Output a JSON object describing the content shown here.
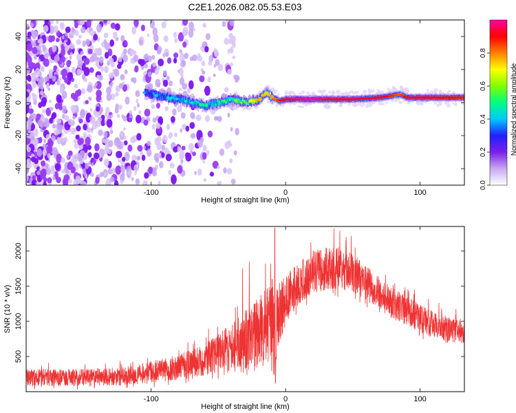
{
  "title": "C2E1.2026.082.05.53.E03",
  "chart_data": [
    {
      "type": "heatmap",
      "name": "spectrogram",
      "xlabel": "Height of straight line (km)",
      "ylabel": "Frequency (Hz)",
      "xlim": [
        -193,
        133
      ],
      "ylim": [
        -50,
        50
      ],
      "xticks": [
        -100,
        0,
        100
      ],
      "yticks": [
        -40,
        -20,
        0,
        20,
        40
      ],
      "ridge": {
        "x": [
          -105,
          -95,
          -80,
          -70,
          -60,
          -50,
          -40,
          -30,
          -20,
          -15,
          -10,
          -5,
          0,
          10,
          20,
          30,
          50,
          70,
          85,
          90,
          100,
          133
        ],
        "freq": [
          6,
          4,
          2,
          0,
          -2,
          0,
          2,
          0,
          2,
          6,
          3,
          1,
          2,
          2,
          2,
          2,
          2,
          3,
          5,
          3,
          3,
          3
        ],
        "amplitude": [
          0.3,
          0.35,
          0.35,
          0.4,
          0.45,
          0.45,
          0.5,
          0.55,
          0.7,
          0.65,
          0.7,
          0.8,
          0.85,
          0.9,
          0.95,
          0.85,
          0.85,
          0.85,
          0.75,
          0.85,
          0.85,
          0.8
        ]
      },
      "noise_region_x": [
        -193,
        -35
      ],
      "colorbar": {
        "label": "Normalized spectral amplitude",
        "range": [
          0,
          1
        ],
        "ticks": [
          "0.0",
          "0.2",
          "0.4",
          "0.6",
          "0.8"
        ],
        "tick_values": [
          0,
          0.2,
          0.4,
          0.6,
          0.8
        ],
        "colormap": [
          "#ffffff",
          "#c8a8f0",
          "#7a20e8",
          "#2020ff",
          "#00c8ff",
          "#00ff80",
          "#80ff00",
          "#ffff00",
          "#ff8000",
          "#ff0000",
          "#ff00a0"
        ]
      }
    },
    {
      "type": "line",
      "name": "snr",
      "xlabel": "Height of straight line (km)",
      "ylabel": "SNR (10 * v/v)",
      "xlim": [
        -193,
        133
      ],
      "ylim": [
        0,
        2350
      ],
      "xticks": [
        -100,
        0,
        100
      ],
      "yticks": [
        500,
        1000,
        1500,
        2000
      ],
      "color": "#ee3333",
      "envelope": {
        "x": [
          -193,
          -150,
          -120,
          -100,
          -80,
          -60,
          -45,
          -35,
          -28,
          -22,
          -18,
          -14,
          -10,
          -8,
          -6,
          -3,
          0,
          10,
          20,
          30,
          40,
          50,
          60,
          70,
          80,
          90,
          100,
          110,
          120,
          133
        ],
        "mean": [
          200,
          200,
          220,
          280,
          350,
          450,
          600,
          650,
          700,
          800,
          900,
          1000,
          900,
          800,
          1000,
          1150,
          1300,
          1550,
          1700,
          1750,
          1760,
          1700,
          1550,
          1400,
          1250,
          1150,
          1050,
          950,
          900,
          850
        ],
        "spread": [
          120,
          120,
          130,
          150,
          180,
          220,
          300,
          400,
          500,
          500,
          500,
          550,
          600,
          700,
          500,
          450,
          350,
          300,
          300,
          300,
          300,
          280,
          250,
          230,
          220,
          200,
          200,
          190,
          180,
          170
        ]
      },
      "spikes": [
        {
          "x": -8,
          "y": 2330
        },
        {
          "x": -10,
          "y": 1600
        },
        {
          "x": -32,
          "y": 1750
        },
        {
          "x": -27,
          "y": 1850
        },
        {
          "x": -15,
          "y": 1820
        },
        {
          "x": 36,
          "y": 2320
        },
        {
          "x": -7.5,
          "y": 120
        }
      ]
    }
  ]
}
